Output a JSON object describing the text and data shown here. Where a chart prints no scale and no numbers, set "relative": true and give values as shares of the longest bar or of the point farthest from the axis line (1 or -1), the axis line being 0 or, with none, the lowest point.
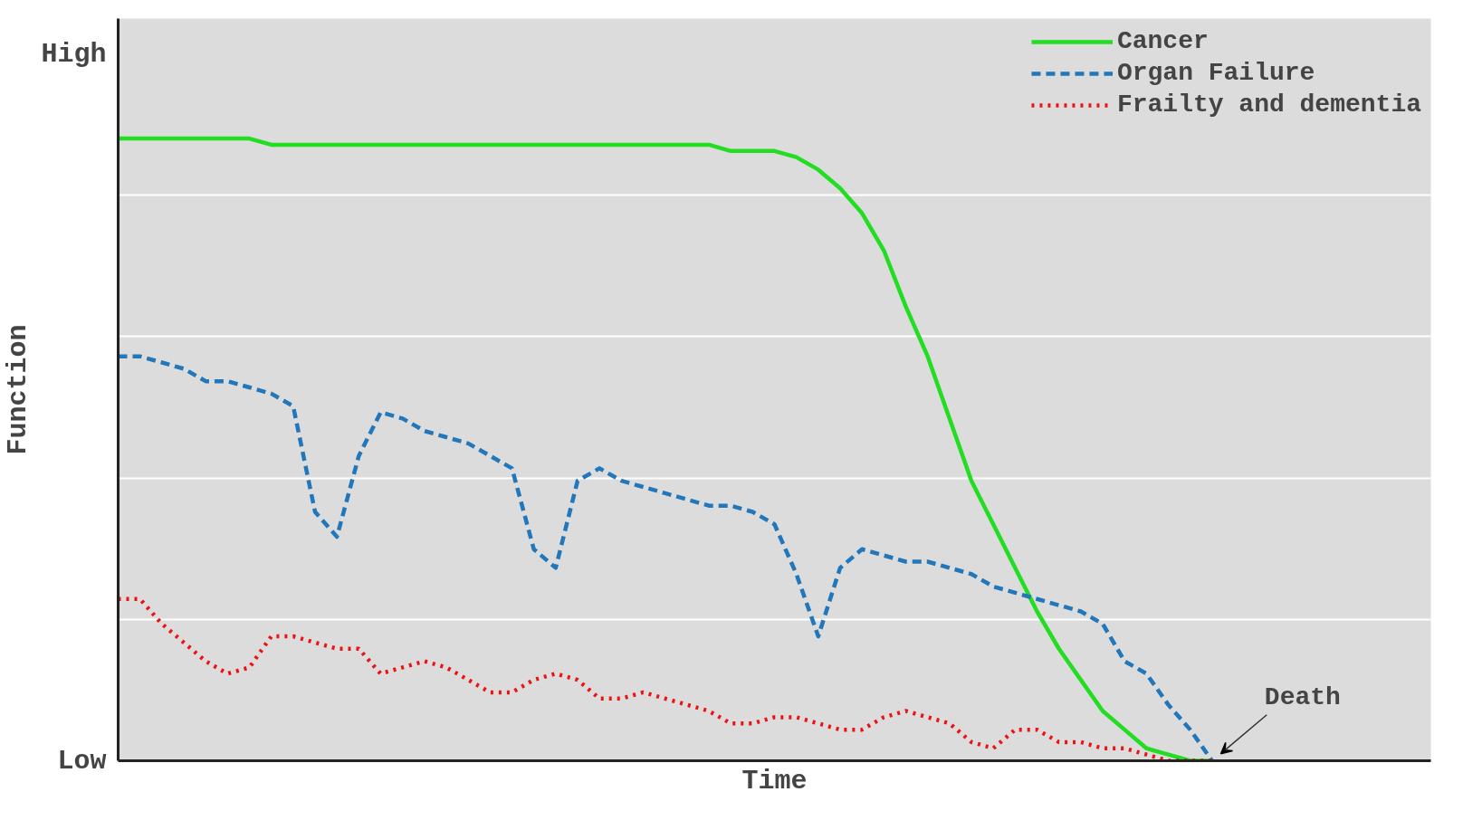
{
  "chart_data": {
    "type": "line",
    "xlabel": "Time",
    "ylabel": "Function",
    "relative": true,
    "grid": "y",
    "legend": "top right",
    "marker": "none",
    "categories": [
      null,
      null,
      null,
      null,
      null,
      null,
      null,
      null,
      null,
      null,
      null,
      null,
      null,
      null,
      null,
      null,
      null,
      null,
      null,
      null,
      null,
      null,
      null,
      null,
      null,
      null,
      null,
      null,
      null,
      null,
      null,
      null,
      null,
      null,
      null,
      null,
      null,
      null,
      null,
      null,
      null,
      null,
      null,
      null,
      null,
      null,
      null,
      null,
      null,
      null,
      null
    ],
    "series": [
      {
        "name": "Cancer",
        "color": "#22dd22",
        "line_style": "solid",
        "values": [
          1,
          1,
          1,
          1,
          1,
          1,
          1,
          0.99,
          0.99,
          0.99,
          0.99,
          0.99,
          0.99,
          0.99,
          0.99,
          0.99,
          0.99,
          0.99,
          0.99,
          0.99,
          0.99,
          0.99,
          0.99,
          0.99,
          0.99,
          0.99,
          0.99,
          0.99,
          0.98,
          0.98,
          0.98,
          0.97,
          0.95,
          0.92,
          0.88,
          0.82,
          0.73,
          0.65,
          0.55,
          0.45,
          0.38,
          0.31,
          0.24,
          0.18,
          0.13,
          0.08,
          0.05,
          0.02,
          0.01,
          0,
          0
        ]
      },
      {
        "name": "Organ Failure",
        "color": "#2277bb",
        "line_style": "dashed",
        "values": [
          0.65,
          0.65,
          0.64,
          0.63,
          0.61,
          0.61,
          0.6,
          0.59,
          0.57,
          0.4,
          0.36,
          0.49,
          0.56,
          0.55,
          0.53,
          0.52,
          0.51,
          0.49,
          0.47,
          0.34,
          0.31,
          0.45,
          0.47,
          0.45,
          0.44,
          0.43,
          0.42,
          0.41,
          0.41,
          0.4,
          0.38,
          0.3,
          0.2,
          0.31,
          0.34,
          0.33,
          0.32,
          0.32,
          0.31,
          0.3,
          0.28,
          0.27,
          0.26,
          0.25,
          0.24,
          0.22,
          0.16,
          0.14,
          0.09,
          0.05,
          0
        ]
      },
      {
        "name": "Frailty and dementia",
        "color": "#ee1111",
        "line_style": "dotted",
        "values": [
          0.26,
          0.26,
          0.22,
          0.19,
          0.16,
          0.14,
          0.15,
          0.2,
          0.2,
          0.19,
          0.18,
          0.18,
          0.14,
          0.15,
          0.16,
          0.15,
          0.13,
          0.11,
          0.11,
          0.13,
          0.14,
          0.13,
          0.1,
          0.1,
          0.11,
          0.1,
          0.09,
          0.08,
          0.06,
          0.06,
          0.07,
          0.07,
          0.06,
          0.05,
          0.05,
          0.07,
          0.08,
          0.07,
          0.06,
          0.03,
          0.02,
          0.05,
          0.05,
          0.03,
          0.03,
          0.02,
          0.02,
          0.01,
          0,
          0,
          0
        ]
      }
    ],
    "annotations": [
      "High",
      "Low",
      "Death"
    ]
  }
}
